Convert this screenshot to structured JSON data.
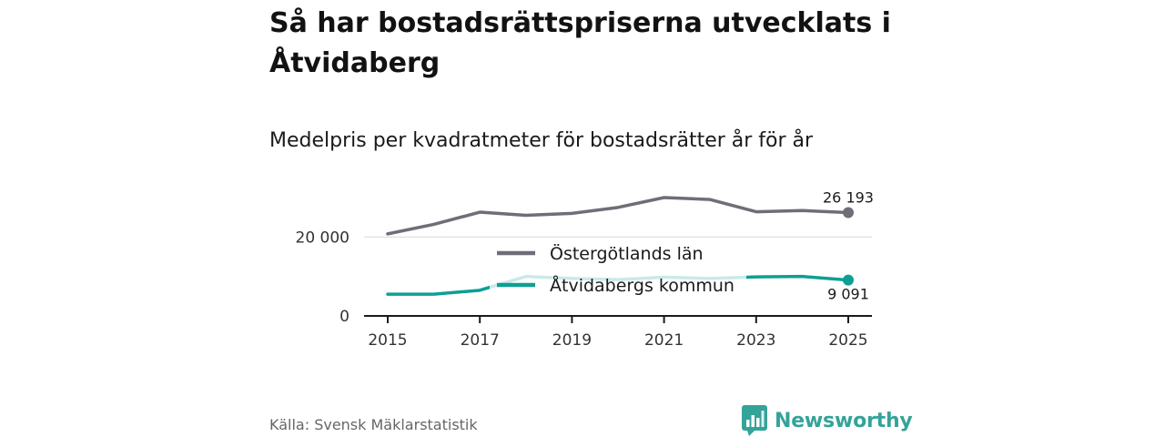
{
  "header": {
    "title": "Så har bostadsrättspriserna utvecklats i Åtvidaberg",
    "subtitle": "Medelpris per kvadratmeter för bostadsrätter år för år"
  },
  "footer": {
    "source": "Källa: Svensk Mäklarstatistik",
    "brand": "Newsworthy",
    "brand_color": "#34a39a"
  },
  "chart_data": {
    "type": "line",
    "title": "Så har bostadsrättspriserna utvecklats i Åtvidaberg",
    "subtitle": "Medelpris per kvadratmeter för bostadsrätter år för år",
    "xlabel": "",
    "ylabel": "",
    "x": [
      2015,
      2016,
      2017,
      2018,
      2019,
      2020,
      2021,
      2022,
      2023,
      2024,
      2025
    ],
    "xlim": [
      2015,
      2025
    ],
    "ylim": [
      0,
      27000
    ],
    "x_ticks": [
      "2015",
      "2017",
      "2019",
      "2021",
      "2023",
      "2025"
    ],
    "x_tick_values": [
      2015,
      2017,
      2019,
      2021,
      2023,
      2025
    ],
    "y_ticks": [
      "0",
      "20 000"
    ],
    "y_tick_values": [
      0,
      20000
    ],
    "grid": true,
    "legend_position": "center",
    "series": [
      {
        "name": "Östergötlands län",
        "color": "#6e6e78",
        "values": [
          20800,
          23200,
          26300,
          25500,
          26000,
          27500,
          30000,
          29500,
          26400,
          26700,
          26193
        ],
        "end_label": "26 193"
      },
      {
        "name": "Åtvidabergs kommun",
        "color": "#0e9f94",
        "values": [
          5500,
          5500,
          6500,
          10000,
          9500,
          9200,
          9800,
          9500,
          9900,
          10000,
          9091
        ],
        "end_label": "9 091"
      }
    ]
  }
}
